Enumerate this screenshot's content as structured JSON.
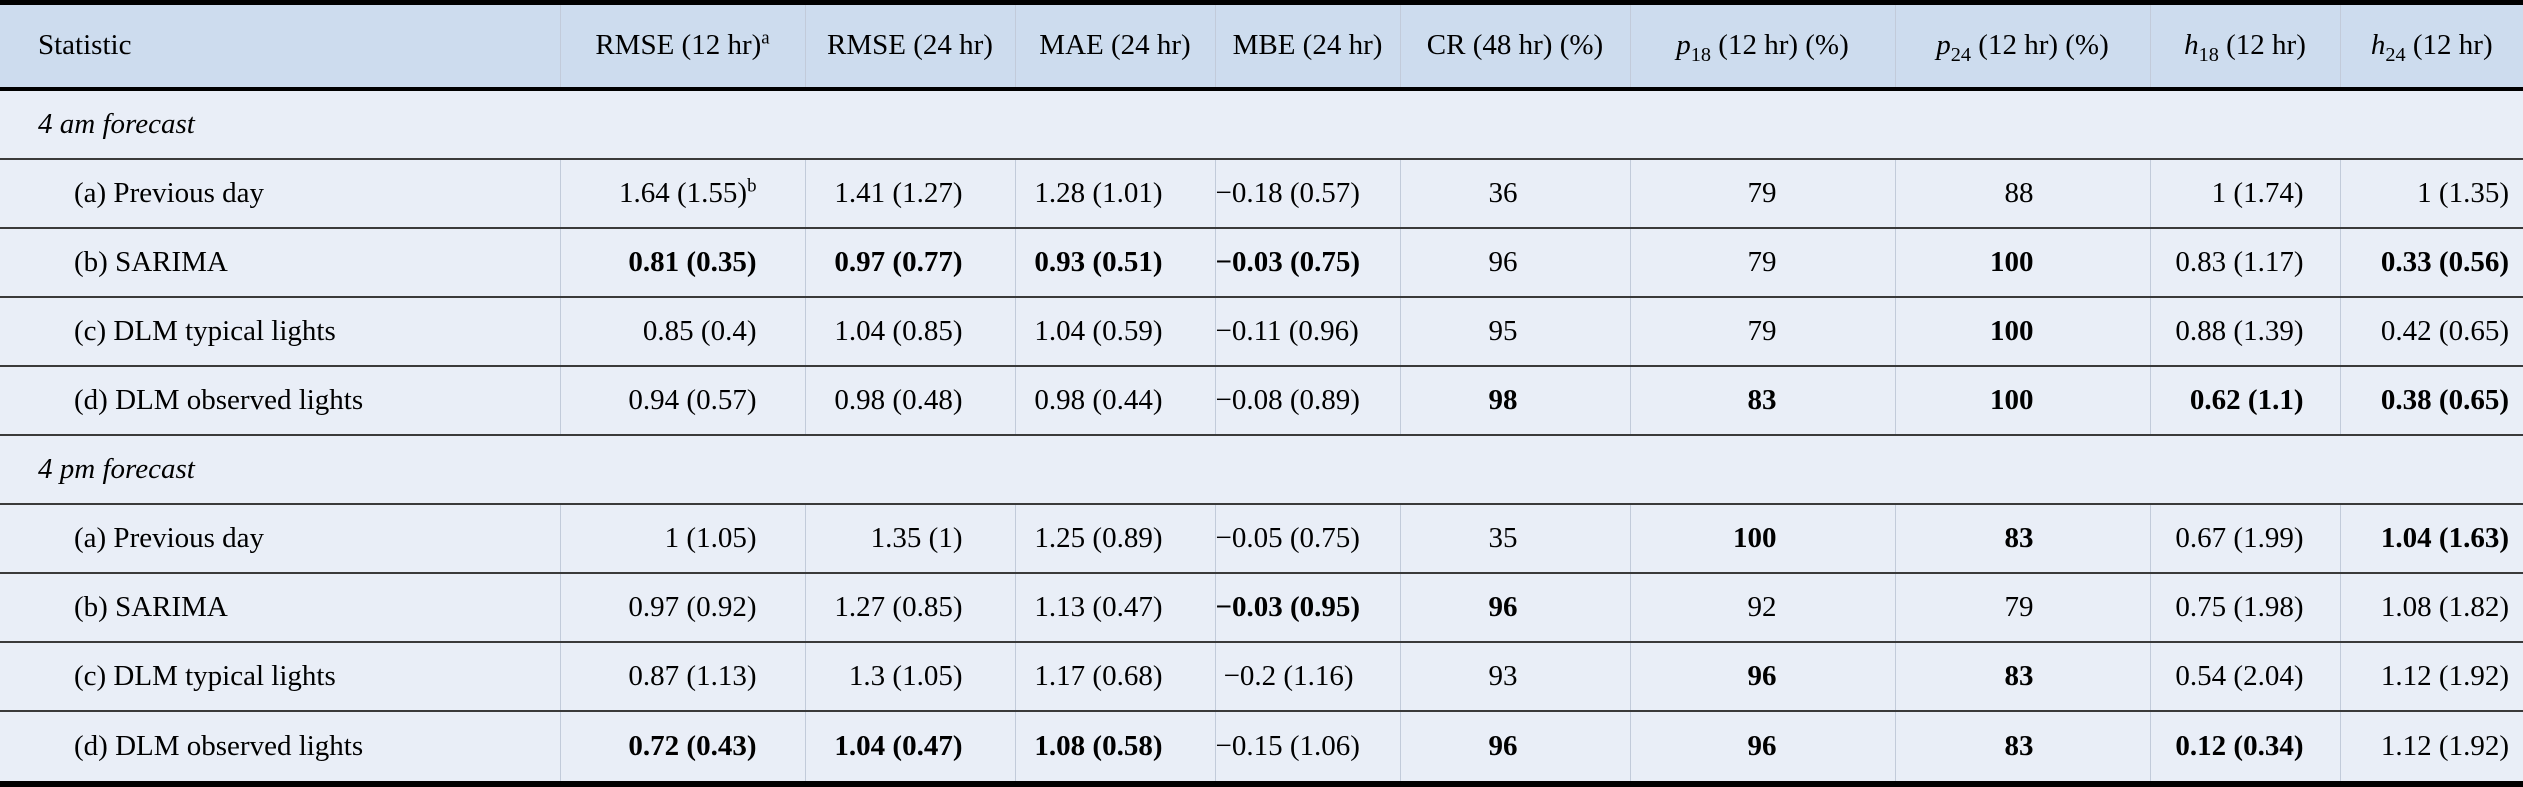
{
  "colors": {
    "header_background": "#cddcee",
    "body_background": "#e9eef7"
  },
  "table": {
    "columns": [
      {
        "id": "statistic",
        "text": "Statistic"
      },
      {
        "id": "rmse-12hr",
        "text": "RMSE (12 hr)",
        "sup": "a"
      },
      {
        "id": "rmse-24hr",
        "text": "RMSE (24 hr)"
      },
      {
        "id": "mae-24hr",
        "text": "MAE (24 hr)"
      },
      {
        "id": "mbe-24hr",
        "text": "MBE (24 hr)"
      },
      {
        "id": "cr-48hr",
        "text": "CR (48 hr) (%)"
      },
      {
        "id": "p18-12hr",
        "var": "p",
        "sub": "18",
        "text": " (12 hr) (%)"
      },
      {
        "id": "p24-12hr",
        "var": "p",
        "sub": "24",
        "text": " (12 hr) (%)"
      },
      {
        "id": "h18-12hr",
        "var": "h",
        "sub": "18",
        "text": " (12 hr)"
      },
      {
        "id": "h24-12hr",
        "var": "h",
        "sub": "24",
        "text": " (12 hr)"
      }
    ],
    "rows": [
      {
        "type": "section",
        "label": "4 am forecast"
      },
      {
        "type": "data",
        "label": "(a) Previous day",
        "cells": [
          {
            "text": "1.64 (1.55)",
            "sup": "b"
          },
          {
            "text": "1.41 (1.27)"
          },
          {
            "text": "1.28 (1.01)"
          },
          {
            "text": "−0.18 (0.57)"
          },
          {
            "text": "36"
          },
          {
            "text": "79"
          },
          {
            "text": "88"
          },
          {
            "text": "1 (1.74)"
          },
          {
            "text": "1 (1.35)"
          }
        ]
      },
      {
        "type": "data",
        "label": "(b) SARIMA",
        "cells": [
          {
            "text": "0.81 (0.35)",
            "bold": true
          },
          {
            "text": "0.97 (0.77)",
            "bold": true
          },
          {
            "text": "0.93 (0.51)",
            "bold": true
          },
          {
            "text": "−0.03 (0.75)",
            "bold": true
          },
          {
            "text": "96"
          },
          {
            "text": "79"
          },
          {
            "text": "100",
            "bold": true
          },
          {
            "text": "0.83 (1.17)"
          },
          {
            "text": "0.33 (0.56)",
            "bold": true
          }
        ]
      },
      {
        "type": "data",
        "label": "(c) DLM typical lights",
        "cells": [
          {
            "text": "0.85 (0.4)"
          },
          {
            "text": "1.04 (0.85)"
          },
          {
            "text": "1.04 (0.59)"
          },
          {
            "text": "−0.11 (0.96)"
          },
          {
            "text": "95"
          },
          {
            "text": "79"
          },
          {
            "text": "100",
            "bold": true
          },
          {
            "text": "0.88 (1.39)"
          },
          {
            "text": "0.42 (0.65)"
          }
        ]
      },
      {
        "type": "data",
        "label": "(d) DLM observed lights",
        "cells": [
          {
            "text": "0.94 (0.57)"
          },
          {
            "text": "0.98 (0.48)"
          },
          {
            "text": "0.98 (0.44)"
          },
          {
            "text": "−0.08 (0.89)"
          },
          {
            "text": "98",
            "bold": true
          },
          {
            "text": "83",
            "bold": true
          },
          {
            "text": "100",
            "bold": true
          },
          {
            "text": "0.62 (1.1)",
            "bold": true
          },
          {
            "text": "0.38 (0.65)",
            "bold": true
          }
        ]
      },
      {
        "type": "section",
        "label": "4 pm forecast"
      },
      {
        "type": "data",
        "label": "(a) Previous day",
        "cells": [
          {
            "text": "1 (1.05)"
          },
          {
            "text": "1.35 (1)"
          },
          {
            "text": "1.25 (0.89)"
          },
          {
            "text": "−0.05 (0.75)"
          },
          {
            "text": "35"
          },
          {
            "text": "100",
            "bold": true
          },
          {
            "text": "83",
            "bold": true
          },
          {
            "text": "0.67 (1.99)"
          },
          {
            "text": "1.04 (1.63)",
            "bold": true
          }
        ]
      },
      {
        "type": "data",
        "label": "(b) SARIMA",
        "cells": [
          {
            "text": "0.97 (0.92)"
          },
          {
            "text": "1.27 (0.85)"
          },
          {
            "text": "1.13 (0.47)"
          },
          {
            "text": "−0.03 (0.95)",
            "bold": true
          },
          {
            "text": "96",
            "bold": true
          },
          {
            "text": "92"
          },
          {
            "text": "79"
          },
          {
            "text": "0.75 (1.98)"
          },
          {
            "text": "1.08 (1.82)"
          }
        ]
      },
      {
        "type": "data",
        "label": "(c) DLM typical lights",
        "cells": [
          {
            "text": "0.87 (1.13)"
          },
          {
            "text": "1.3 (1.05)"
          },
          {
            "text": "1.17 (0.68)"
          },
          {
            "text": "−0.2 (1.16)"
          },
          {
            "text": "93"
          },
          {
            "text": "96",
            "bold": true
          },
          {
            "text": "83",
            "bold": true
          },
          {
            "text": "0.54 (2.04)"
          },
          {
            "text": "1.12 (1.92)"
          }
        ]
      },
      {
        "type": "data",
        "label": "(d) DLM observed lights",
        "cells": [
          {
            "text": "0.72 (0.43)",
            "bold": true
          },
          {
            "text": "1.04 (0.47)",
            "bold": true
          },
          {
            "text": "1.08 (0.58)",
            "bold": true
          },
          {
            "text": "−0.15 (1.06)"
          },
          {
            "text": "96",
            "bold": true
          },
          {
            "text": "96",
            "bold": true
          },
          {
            "text": "83",
            "bold": true
          },
          {
            "text": "0.12 (0.34)",
            "bold": true
          },
          {
            "text": "1.12 (1.92)"
          }
        ]
      }
    ]
  }
}
